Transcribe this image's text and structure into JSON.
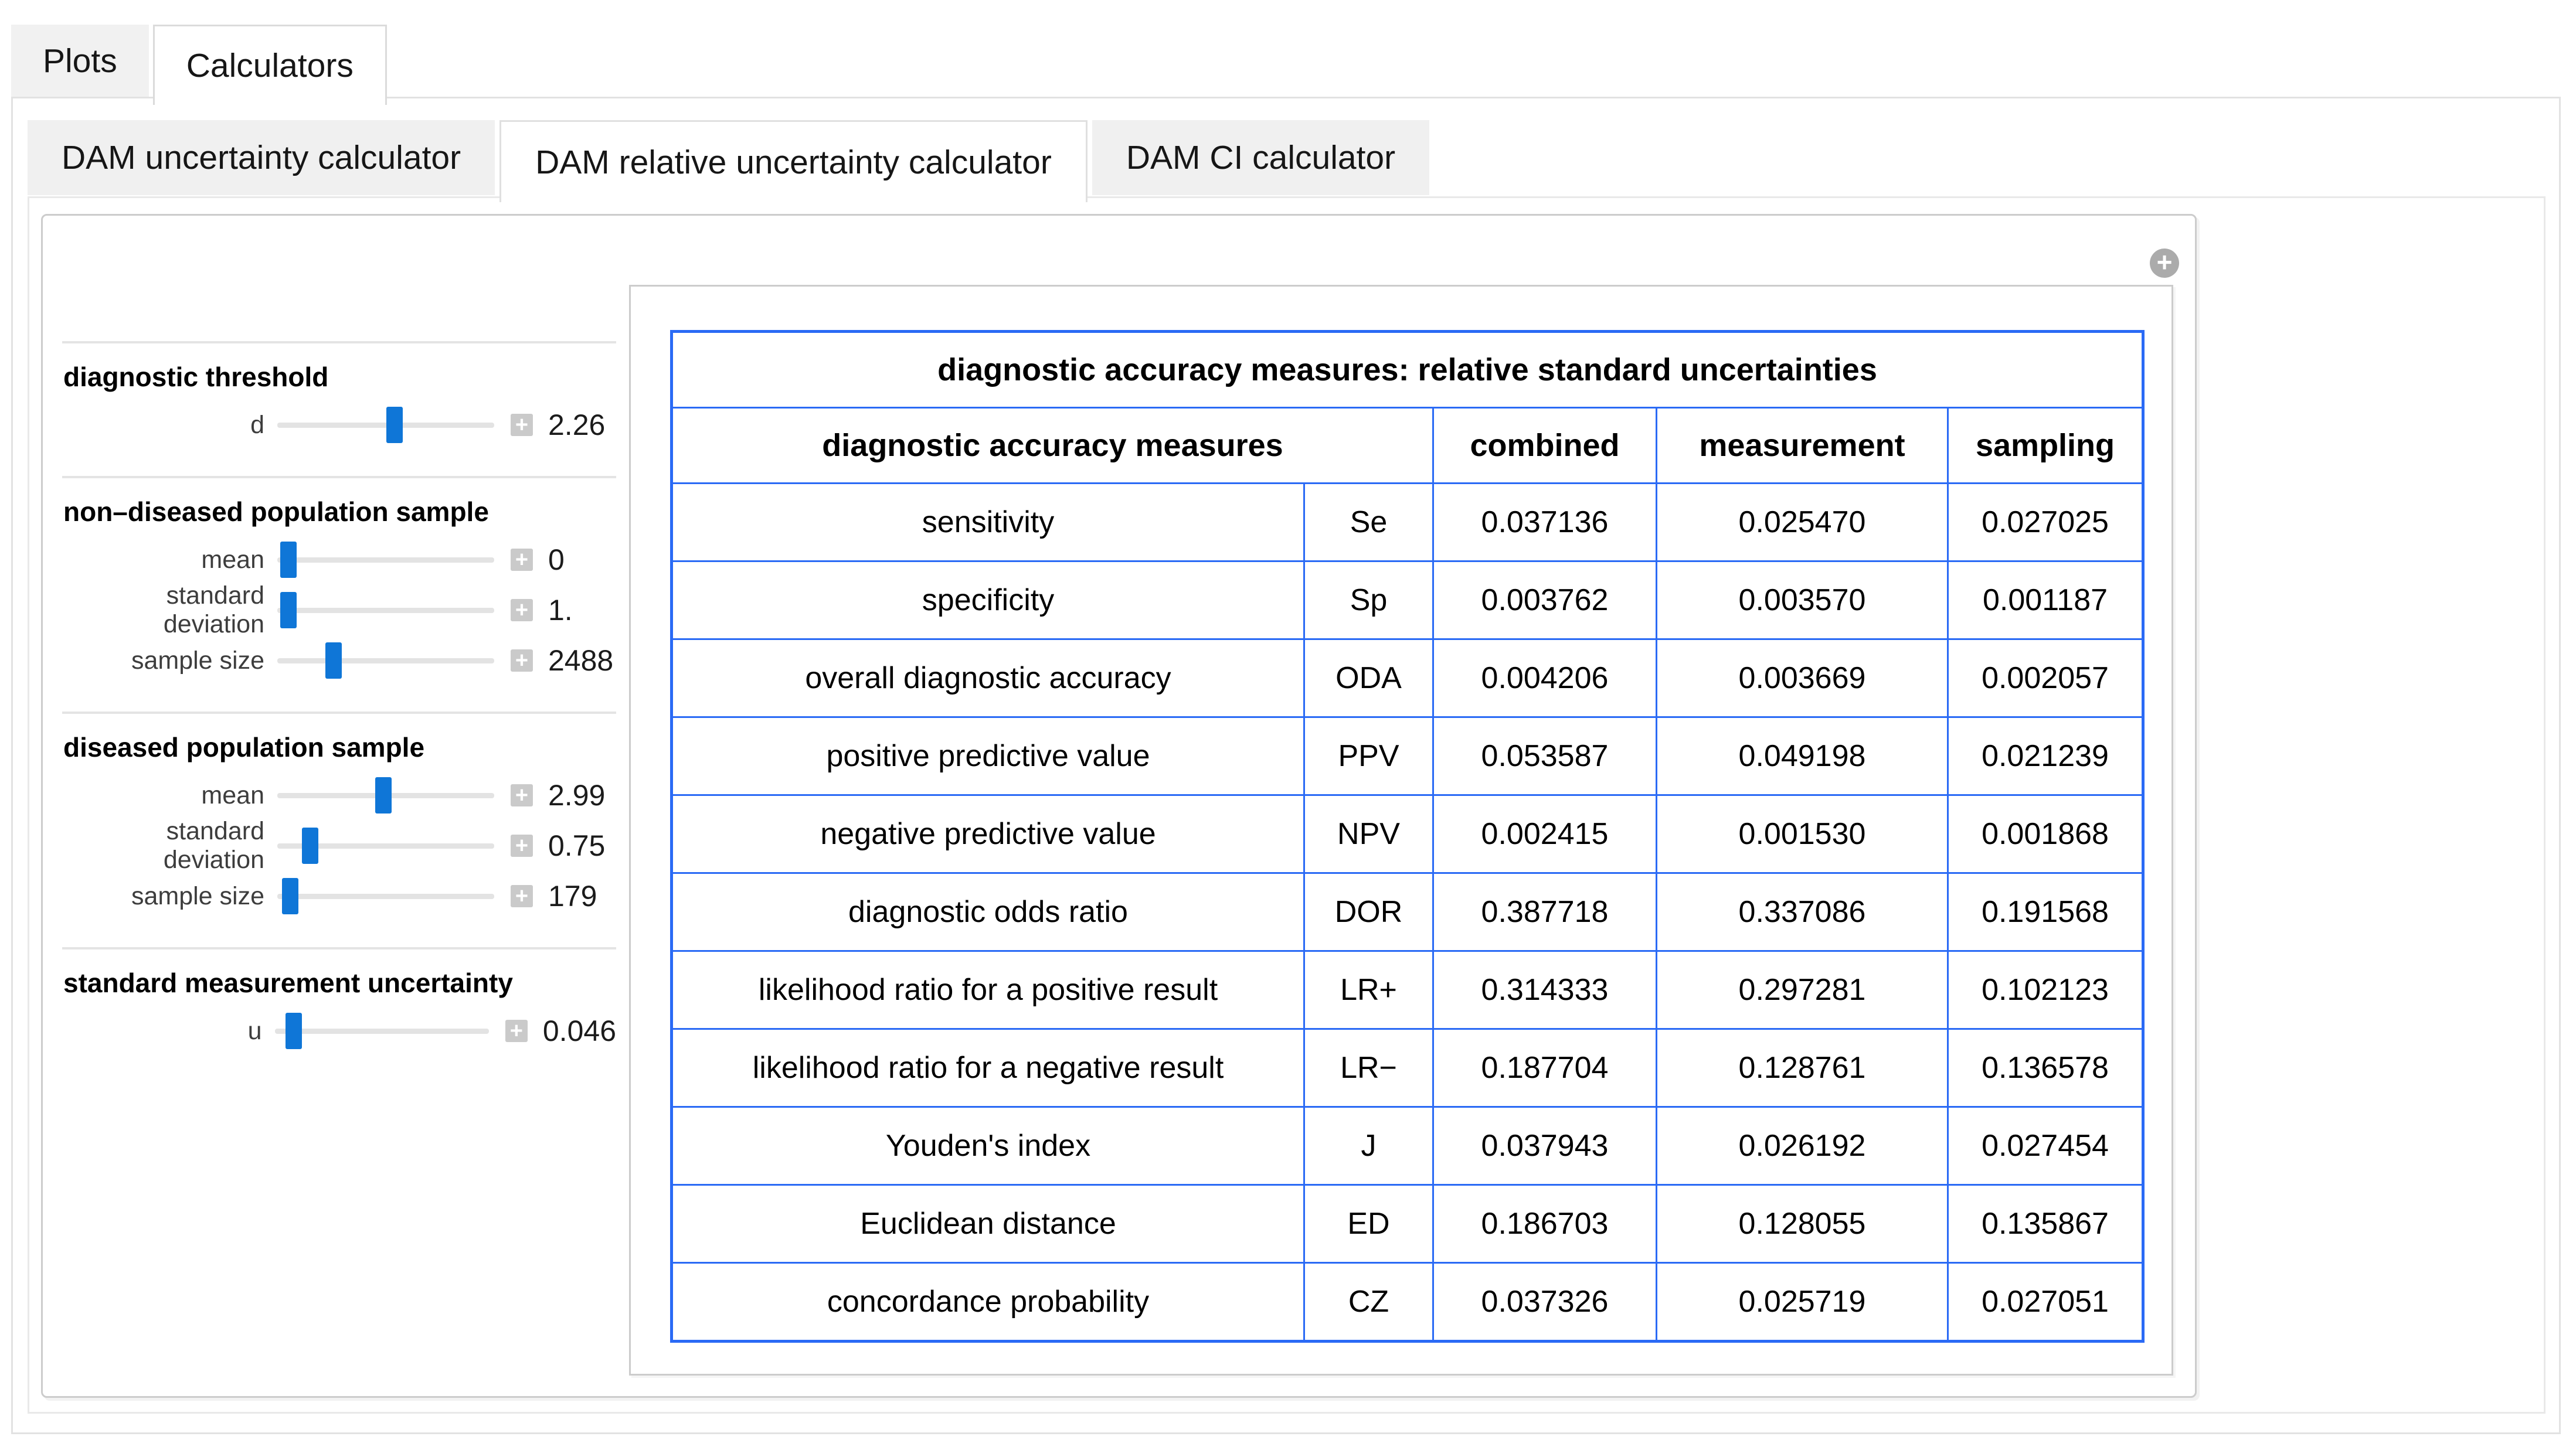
{
  "main_tabs": [
    {
      "label": "Plots",
      "active": false
    },
    {
      "label": "Calculators",
      "active": true
    }
  ],
  "sub_tabs": [
    {
      "label": "DAM uncertainty calculator",
      "active": false
    },
    {
      "label": "DAM relative uncertainty calculator",
      "active": true
    },
    {
      "label": "DAM CI calculator",
      "active": false
    }
  ],
  "manipulate": {
    "expand_button_glyph": "+"
  },
  "controls": {
    "groups": [
      {
        "title": "diagnostic threshold",
        "sliders": [
          {
            "label": "d",
            "value": "2.26",
            "position_pct": 54
          }
        ]
      },
      {
        "title": "non–diseased population sample",
        "sliders": [
          {
            "label": "mean",
            "value": "0",
            "position_pct": 5
          },
          {
            "label": "standard deviation",
            "value": "1.",
            "position_pct": 5
          },
          {
            "label": "sample size",
            "value": "2488",
            "position_pct": 26
          }
        ]
      },
      {
        "title": "diseased population sample",
        "sliders": [
          {
            "label": "mean",
            "value": "2.99",
            "position_pct": 49
          },
          {
            "label": "standard deviation",
            "value": "0.75",
            "position_pct": 15
          },
          {
            "label": "sample size",
            "value": "179",
            "position_pct": 6
          }
        ]
      },
      {
        "title": "standard measurement uncertainty",
        "sliders": [
          {
            "label": "u",
            "value": "0.046",
            "position_pct": 9
          }
        ]
      }
    ],
    "stepper_glyph": "+"
  },
  "table": {
    "title": "diagnostic accuracy measures: relative standard uncertainties",
    "headers": {
      "measures": "diagnostic accuracy measures",
      "combined": "combined",
      "measurement": "measurement",
      "sampling": "sampling"
    },
    "rows": [
      {
        "name": "sensitivity",
        "abbr": "Se",
        "combined": "0.037136",
        "measurement": "0.025470",
        "sampling": "0.027025"
      },
      {
        "name": "specificity",
        "abbr": "Sp",
        "combined": "0.003762",
        "measurement": "0.003570",
        "sampling": "0.001187"
      },
      {
        "name": "overall diagnostic accuracy",
        "abbr": "ODA",
        "combined": "0.004206",
        "measurement": "0.003669",
        "sampling": "0.002057"
      },
      {
        "name": "positive predictive value",
        "abbr": "PPV",
        "combined": "0.053587",
        "measurement": "0.049198",
        "sampling": "0.021239"
      },
      {
        "name": "negative predictive value",
        "abbr": "NPV",
        "combined": "0.002415",
        "measurement": "0.001530",
        "sampling": "0.001868"
      },
      {
        "name": "diagnostic odds ratio",
        "abbr": "DOR",
        "combined": "0.387718",
        "measurement": "0.337086",
        "sampling": "0.191568"
      },
      {
        "name": "likelihood ratio for a positive result",
        "abbr": "LR+",
        "combined": "0.314333",
        "measurement": "0.297281",
        "sampling": "0.102123"
      },
      {
        "name": "likelihood ratio for a negative result",
        "abbr": "LR−",
        "combined": "0.187704",
        "measurement": "0.128761",
        "sampling": "0.136578"
      },
      {
        "name": "Youden's index",
        "abbr": "J",
        "combined": "0.037943",
        "measurement": "0.026192",
        "sampling": "0.027454"
      },
      {
        "name": "Euclidean distance",
        "abbr": "ED",
        "combined": "0.186703",
        "measurement": "0.128055",
        "sampling": "0.135867"
      },
      {
        "name": "concordance probability",
        "abbr": "CZ",
        "combined": "0.037326",
        "measurement": "0.025719",
        "sampling": "0.027051"
      }
    ]
  },
  "colors": {
    "table_border_blue": "#2a6af5",
    "slider_handle_blue": "#0f76d7",
    "tab_inactive_bg": "#f0f0f0",
    "frame_border_gray": "#e2e2e2",
    "panel_border_gray": "#cccccc"
  }
}
